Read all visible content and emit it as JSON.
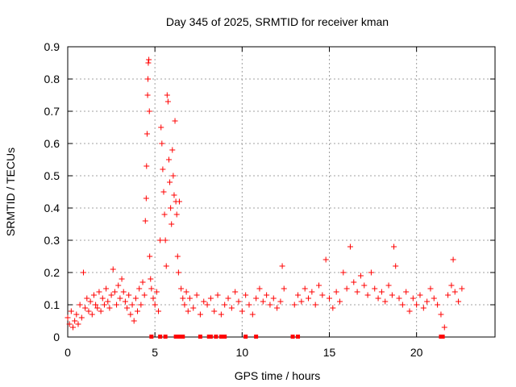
{
  "chart_data": {
    "type": "scatter",
    "title": "Day 345 of 2025, SRMTID for receiver kman",
    "xlabel": "GPS time / hours",
    "ylabel": "SRMTID / TECUs",
    "xlim": [
      0,
      24.5
    ],
    "ylim": [
      0,
      0.9
    ],
    "x_ticks": [
      0,
      5,
      10,
      15,
      20
    ],
    "x_tick_labels": [
      "0",
      "5",
      "10",
      "15",
      "20"
    ],
    "y_ticks": [
      0,
      0.1,
      0.2,
      0.3,
      0.4,
      0.5,
      0.6,
      0.7,
      0.8,
      0.9
    ],
    "y_tick_labels": [
      "0",
      "0.1",
      "0.2",
      "0.3",
      "0.4",
      "0.5",
      "0.6",
      "0.7",
      "0.8",
      "0.9"
    ],
    "grid": true,
    "marker": "+",
    "color": "#ff0000",
    "series": [
      {
        "name": "SRMTID",
        "points": [
          [
            0.0,
            0.06
          ],
          [
            0.1,
            0.04
          ],
          [
            0.2,
            0.08
          ],
          [
            0.3,
            0.03
          ],
          [
            0.4,
            0.05
          ],
          [
            0.5,
            0.07
          ],
          [
            0.6,
            0.04
          ],
          [
            0.7,
            0.1
          ],
          [
            0.8,
            0.06
          ],
          [
            0.9,
            0.2
          ],
          [
            1.0,
            0.09
          ],
          [
            1.1,
            0.12
          ],
          [
            1.2,
            0.08
          ],
          [
            1.3,
            0.11
          ],
          [
            1.4,
            0.07
          ],
          [
            1.5,
            0.13
          ],
          [
            1.6,
            0.1
          ],
          [
            1.7,
            0.09
          ],
          [
            1.8,
            0.14
          ],
          [
            1.9,
            0.08
          ],
          [
            2.0,
            0.12
          ],
          [
            2.1,
            0.1
          ],
          [
            2.2,
            0.15
          ],
          [
            2.3,
            0.11
          ],
          [
            2.4,
            0.09
          ],
          [
            2.5,
            0.13
          ],
          [
            2.6,
            0.21
          ],
          [
            2.7,
            0.14
          ],
          [
            2.8,
            0.1
          ],
          [
            2.9,
            0.16
          ],
          [
            3.0,
            0.12
          ],
          [
            3.1,
            0.18
          ],
          [
            3.2,
            0.14
          ],
          [
            3.3,
            0.11
          ],
          [
            3.4,
            0.09
          ],
          [
            3.5,
            0.13
          ],
          [
            3.6,
            0.07
          ],
          [
            3.7,
            0.1
          ],
          [
            3.8,
            0.05
          ],
          [
            3.9,
            0.12
          ],
          [
            4.0,
            0.08
          ],
          [
            4.1,
            0.15
          ],
          [
            4.2,
            0.1
          ],
          [
            4.3,
            0.17
          ],
          [
            4.4,
            0.13
          ],
          [
            4.45,
            0.36
          ],
          [
            4.5,
            0.43
          ],
          [
            4.52,
            0.53
          ],
          [
            4.55,
            0.63
          ],
          [
            4.58,
            0.75
          ],
          [
            4.6,
            0.8
          ],
          [
            4.62,
            0.85
          ],
          [
            4.65,
            0.86
          ],
          [
            4.68,
            0.7
          ],
          [
            4.7,
            0.25
          ],
          [
            4.75,
            0.18
          ],
          [
            4.8,
            0.15
          ],
          [
            4.9,
            0.12
          ],
          [
            5.0,
            0.1
          ],
          [
            5.1,
            0.14
          ],
          [
            5.2,
            0.08
          ],
          [
            5.3,
            0.3
          ],
          [
            5.35,
            0.65
          ],
          [
            5.4,
            0.6
          ],
          [
            5.45,
            0.52
          ],
          [
            5.5,
            0.45
          ],
          [
            5.55,
            0.38
          ],
          [
            5.6,
            0.3
          ],
          [
            5.65,
            0.22
          ],
          [
            5.7,
            0.75
          ],
          [
            5.75,
            0.73
          ],
          [
            5.8,
            0.55
          ],
          [
            5.85,
            0.48
          ],
          [
            5.9,
            0.4
          ],
          [
            5.95,
            0.35
          ],
          [
            6.0,
            0.58
          ],
          [
            6.05,
            0.5
          ],
          [
            6.1,
            0.44
          ],
          [
            6.15,
            0.67
          ],
          [
            6.2,
            0.42
          ],
          [
            6.25,
            0.38
          ],
          [
            6.3,
            0.25
          ],
          [
            6.35,
            0.2
          ],
          [
            6.4,
            0.42
          ],
          [
            6.5,
            0.15
          ],
          [
            6.6,
            0.12
          ],
          [
            6.7,
            0.1
          ],
          [
            6.8,
            0.14
          ],
          [
            6.9,
            0.08
          ],
          [
            7.0,
            0.12
          ],
          [
            7.2,
            0.09
          ],
          [
            7.4,
            0.13
          ],
          [
            7.6,
            0.07
          ],
          [
            7.8,
            0.11
          ],
          [
            8.0,
            0.1
          ],
          [
            8.2,
            0.12
          ],
          [
            8.4,
            0.08
          ],
          [
            8.6,
            0.13
          ],
          [
            8.8,
            0.07
          ],
          [
            9.0,
            0.1
          ],
          [
            9.2,
            0.12
          ],
          [
            9.4,
            0.09
          ],
          [
            9.6,
            0.14
          ],
          [
            9.8,
            0.11
          ],
          [
            10.0,
            0.08
          ],
          [
            10.2,
            0.13
          ],
          [
            10.4,
            0.1
          ],
          [
            10.6,
            0.07
          ],
          [
            10.8,
            0.12
          ],
          [
            11.0,
            0.15
          ],
          [
            11.2,
            0.11
          ],
          [
            11.4,
            0.13
          ],
          [
            11.6,
            0.1
          ],
          [
            11.8,
            0.12
          ],
          [
            12.0,
            0.09
          ],
          [
            12.2,
            0.11
          ],
          [
            12.3,
            0.22
          ],
          [
            12.4,
            0.15
          ],
          [
            13.0,
            0.1
          ],
          [
            13.2,
            0.13
          ],
          [
            13.4,
            0.11
          ],
          [
            13.6,
            0.15
          ],
          [
            13.8,
            0.12
          ],
          [
            14.0,
            0.14
          ],
          [
            14.2,
            0.1
          ],
          [
            14.4,
            0.16
          ],
          [
            14.6,
            0.13
          ],
          [
            14.8,
            0.24
          ],
          [
            15.0,
            0.12
          ],
          [
            15.2,
            0.09
          ],
          [
            15.4,
            0.14
          ],
          [
            15.6,
            0.11
          ],
          [
            15.8,
            0.2
          ],
          [
            16.0,
            0.15
          ],
          [
            16.2,
            0.28
          ],
          [
            16.4,
            0.17
          ],
          [
            16.6,
            0.14
          ],
          [
            16.8,
            0.19
          ],
          [
            17.0,
            0.16
          ],
          [
            17.2,
            0.13
          ],
          [
            17.4,
            0.2
          ],
          [
            17.6,
            0.15
          ],
          [
            17.8,
            0.12
          ],
          [
            18.0,
            0.14
          ],
          [
            18.2,
            0.11
          ],
          [
            18.4,
            0.16
          ],
          [
            18.6,
            0.13
          ],
          [
            18.7,
            0.28
          ],
          [
            18.8,
            0.22
          ],
          [
            19.0,
            0.12
          ],
          [
            19.2,
            0.1
          ],
          [
            19.4,
            0.14
          ],
          [
            19.6,
            0.08
          ],
          [
            19.8,
            0.12
          ],
          [
            20.0,
            0.1
          ],
          [
            20.2,
            0.13
          ],
          [
            20.4,
            0.09
          ],
          [
            20.6,
            0.11
          ],
          [
            20.8,
            0.15
          ],
          [
            21.0,
            0.12
          ],
          [
            21.2,
            0.1
          ],
          [
            21.4,
            0.07
          ],
          [
            21.6,
            0.03
          ],
          [
            21.8,
            0.13
          ],
          [
            22.0,
            0.16
          ],
          [
            22.1,
            0.24
          ],
          [
            22.2,
            0.14
          ],
          [
            22.4,
            0.11
          ],
          [
            22.6,
            0.15
          ]
        ],
        "zero_points_x": [
          4.8,
          5.3,
          5.6,
          6.2,
          6.4,
          6.6,
          7.6,
          8.1,
          8.2,
          8.5,
          8.8,
          9.0,
          10.2,
          10.8,
          12.9,
          13.2,
          21.4,
          21.5
        ]
      }
    ]
  }
}
